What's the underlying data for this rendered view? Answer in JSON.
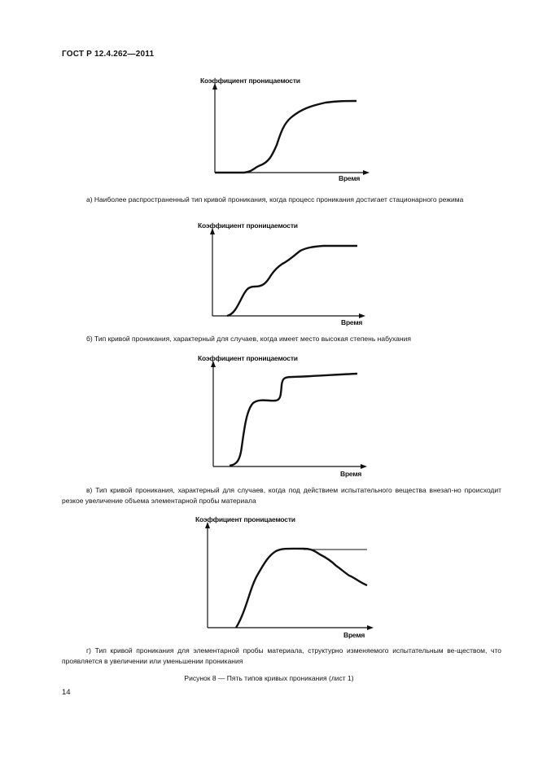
{
  "header": {
    "standard": "ГОСТ Р 12.4.262—2011"
  },
  "figures": [
    {
      "ylabel": "Коэффициент проницаемости",
      "xlabel": "Время",
      "caption": "а) Наиболее распространенный тип кривой проникания, когда процесс проникания достигает стационарного режима"
    },
    {
      "ylabel": "Коэффициент проницаемости",
      "xlabel": "Время",
      "caption": "б) Тип кривой проникания, характерный для случаев, когда имеет место высокая степень набухания"
    },
    {
      "ylabel": "Коэффициент проницаемости",
      "xlabel": "Время",
      "caption": "в) Тип кривой проникания, характерный для случаев, когда под действием испытательного вещества внезап-но происходит резкое увеличение объема элементарной пробы материала"
    },
    {
      "ylabel": "Коэффициент проницаемости",
      "xlabel": "Время",
      "caption": "г) Тип кривой проникания для элементарной пробы материала, структурно изменяемого испытательным ве-ществом, что проявляется в увеличении или уменьшении проникания"
    }
  ],
  "figure_title": "Рисунок 8 — Пять типов кривых проникания (лист 1)",
  "page_number": "14"
}
